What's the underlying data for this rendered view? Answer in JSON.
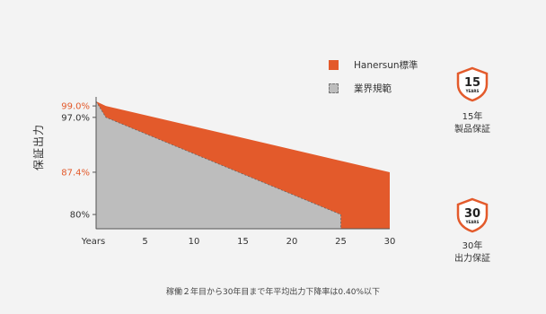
{
  "chart_data": {
    "type": "area",
    "ylabel": "保証出力",
    "x_ticks": [
      "Years",
      "5",
      "10",
      "15",
      "20",
      "25",
      "30"
    ],
    "xlim": [
      0,
      30
    ],
    "ylim": [
      77.5,
      99.8
    ],
    "y_ticks": [
      {
        "value": 99.0,
        "label": "99.0%",
        "color": "#e35a2b"
      },
      {
        "value": 97.0,
        "label": "97.0%",
        "color": "#333333"
      },
      {
        "value": 87.4,
        "label": "87.4%",
        "color": "#e35a2b"
      },
      {
        "value": 80.0,
        "label": "80%",
        "color": "#333333"
      }
    ],
    "series": [
      {
        "name": "Hanersun標準",
        "color": "#e35a2b",
        "x": [
          0,
          1,
          30
        ],
        "y": [
          99.8,
          99.0,
          87.4
        ]
      },
      {
        "name": "業界規範",
        "color": "#bdbdbd",
        "x": [
          0,
          1,
          25
        ],
        "y": [
          99.8,
          97.0,
          80.0
        ]
      }
    ],
    "legend_position": "top-right"
  },
  "badges": [
    {
      "number": "15",
      "unit": "YEARS",
      "line1": "15年",
      "line2": "製品保証"
    },
    {
      "number": "30",
      "unit": "YEARS",
      "line1": "30年",
      "line2": "出力保証"
    }
  ],
  "footnote": "稼働２年目から30年目まで年平均出力下降率は0.40%以下",
  "colors": {
    "accent": "#e35a2b",
    "gray": "#bdbdbd"
  }
}
